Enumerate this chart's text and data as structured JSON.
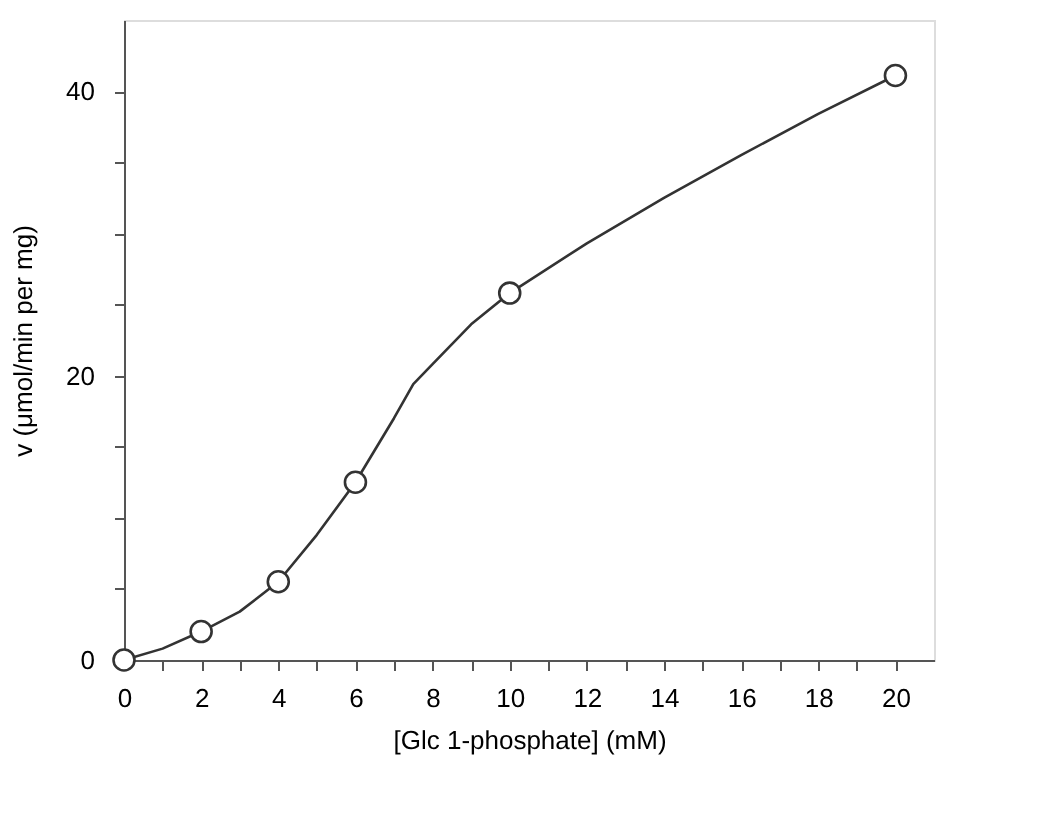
{
  "chart_data": {
    "type": "scatter",
    "xlabel": "[Glc 1-phosphate] (mM)",
    "ylabel": "v (μmol/min per mg)",
    "xlim": [
      0,
      21
    ],
    "ylim": [
      0,
      45
    ],
    "xticks": [
      0,
      {
        "value": 1,
        "label": null
      },
      2,
      {
        "value": 3,
        "label": null
      },
      4,
      {
        "value": 5,
        "label": null
      },
      6,
      {
        "value": 7,
        "label": null
      },
      8,
      {
        "value": 9,
        "label": null
      },
      10,
      {
        "value": 11,
        "label": null
      },
      12,
      {
        "value": 13,
        "label": null
      },
      14,
      {
        "value": 15,
        "label": null
      },
      16,
      {
        "value": 17,
        "label": null
      },
      18,
      {
        "value": 19,
        "label": null
      },
      20
    ],
    "yticks": [
      0,
      {
        "value": 5,
        "label": null
      },
      {
        "value": 10,
        "label": null
      },
      {
        "value": 15,
        "label": null
      },
      20,
      {
        "value": 25,
        "label": null
      },
      {
        "value": 30,
        "label": null
      },
      {
        "value": 35,
        "label": null
      },
      40
    ],
    "grid": false,
    "series": [
      {
        "type": "line",
        "color": "#333333",
        "marker": "none",
        "line_style": "solid",
        "x": [
          0,
          1,
          2,
          3,
          4,
          5,
          6,
          7,
          7.5,
          8,
          9,
          10,
          12,
          14,
          16,
          18,
          20
        ],
        "values": [
          0,
          0.8,
          2,
          3.4,
          5.5,
          8.8,
          12.5,
          17,
          19.4,
          20.8,
          23.6,
          25.8,
          29.3,
          32.5,
          35.5,
          38.4,
          41.1
        ]
      },
      {
        "color": "#333333",
        "marker": "circle",
        "x": [
          0,
          2,
          4,
          6,
          10,
          20
        ],
        "values": [
          0,
          2,
          5.5,
          12.5,
          25.8,
          41.1
        ]
      }
    ]
  }
}
